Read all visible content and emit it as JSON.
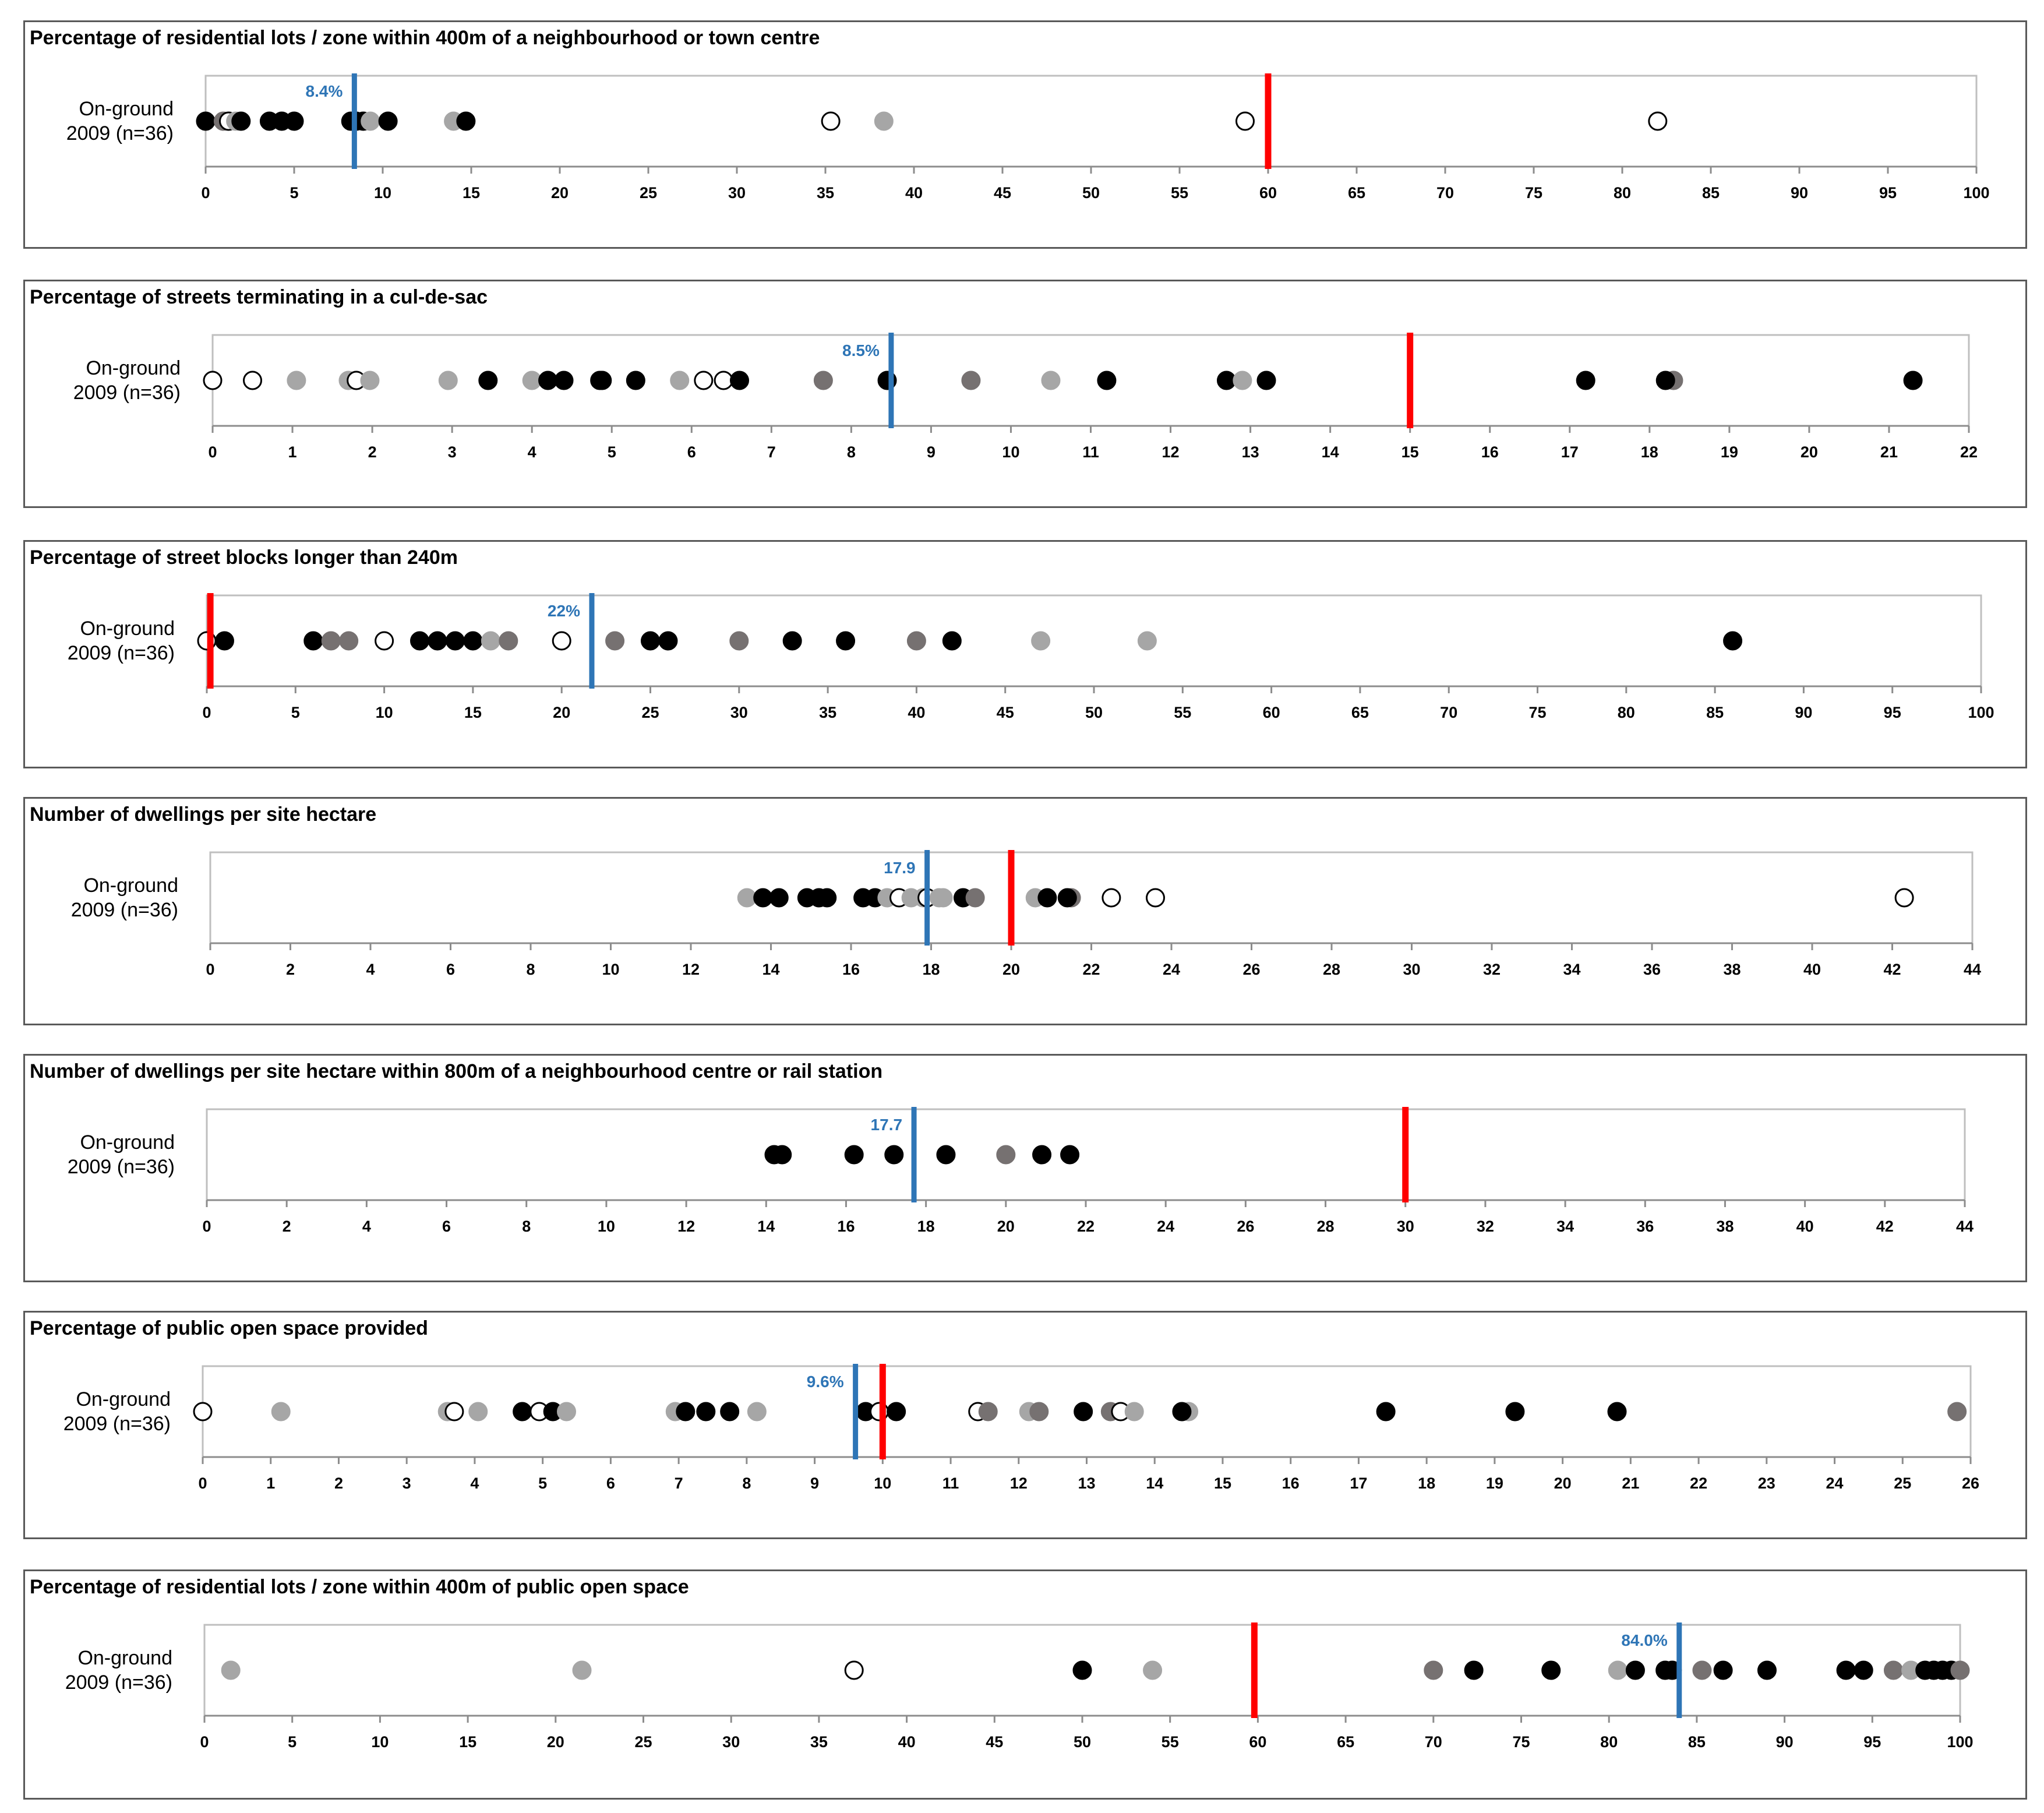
{
  "colors": {
    "black_dot": "#000000",
    "dark_grey_dot": "#767171",
    "light_grey_dot": "#a6a6a6",
    "open_dot_fill": "#ffffff",
    "mean_line": "#2e75b6",
    "target_line": "#ff0000",
    "plot_border": "#bfbfbf"
  },
  "chart_data": [
    {
      "type": "scatter",
      "title": "Percentage of residential lots / zone within 400m of a neighbourhood or town centre",
      "row_label": [
        "On-ground",
        "2009 (n=36)"
      ],
      "xlim": [
        0,
        100
      ],
      "ticks": [
        0,
        5,
        10,
        15,
        20,
        25,
        30,
        35,
        40,
        45,
        50,
        55,
        60,
        65,
        70,
        75,
        80,
        85,
        90,
        95,
        100
      ],
      "mean": {
        "value": 8.4,
        "label": "8.4%"
      },
      "target": {
        "value": 60
      },
      "points": [
        {
          "x": 0,
          "s": "black"
        },
        {
          "x": 1,
          "s": "dark"
        },
        {
          "x": 1.3,
          "s": "open"
        },
        {
          "x": 1.7,
          "s": "light"
        },
        {
          "x": 2,
          "s": "black"
        },
        {
          "x": 3.6,
          "s": "black"
        },
        {
          "x": 4.3,
          "s": "black"
        },
        {
          "x": 5,
          "s": "black"
        },
        {
          "x": 8.2,
          "s": "black"
        },
        {
          "x": 8.5,
          "s": "black"
        },
        {
          "x": 8.9,
          "s": "black"
        },
        {
          "x": 9.3,
          "s": "light"
        },
        {
          "x": 10.3,
          "s": "black"
        },
        {
          "x": 14,
          "s": "light"
        },
        {
          "x": 14.7,
          "s": "black"
        },
        {
          "x": 35.3,
          "s": "open"
        },
        {
          "x": 38.3,
          "s": "light"
        },
        {
          "x": 58.7,
          "s": "open"
        },
        {
          "x": 82,
          "s": "open"
        }
      ]
    },
    {
      "type": "scatter",
      "title": "Percentage of streets terminating in a cul-de-sac",
      "row_label": [
        "On-ground",
        "2009 (n=36)"
      ],
      "xlim": [
        0,
        22
      ],
      "ticks": [
        0,
        1,
        2,
        3,
        4,
        5,
        6,
        7,
        8,
        9,
        10,
        11,
        12,
        13,
        14,
        15,
        16,
        17,
        18,
        19,
        20,
        21,
        22
      ],
      "mean": {
        "value": 8.5,
        "label": "8.5%"
      },
      "target": {
        "value": 15
      },
      "points": [
        {
          "x": 0,
          "s": "open"
        },
        {
          "x": 0.5,
          "s": "open"
        },
        {
          "x": 1.05,
          "s": "light"
        },
        {
          "x": 1.7,
          "s": "light"
        },
        {
          "x": 1.8,
          "s": "open"
        },
        {
          "x": 1.97,
          "s": "light"
        },
        {
          "x": 2.95,
          "s": "light"
        },
        {
          "x": 3.45,
          "s": "black"
        },
        {
          "x": 4,
          "s": "light"
        },
        {
          "x": 4.2,
          "s": "black"
        },
        {
          "x": 4.4,
          "s": "black"
        },
        {
          "x": 4.85,
          "s": "black"
        },
        {
          "x": 4.88,
          "s": "black"
        },
        {
          "x": 5.3,
          "s": "black"
        },
        {
          "x": 5.85,
          "s": "light"
        },
        {
          "x": 6.15,
          "s": "open"
        },
        {
          "x": 6.4,
          "s": "open"
        },
        {
          "x": 6.6,
          "s": "black"
        },
        {
          "x": 7.65,
          "s": "dark"
        },
        {
          "x": 8.45,
          "s": "black"
        },
        {
          "x": 9.5,
          "s": "dark"
        },
        {
          "x": 10.5,
          "s": "light"
        },
        {
          "x": 11.2,
          "s": "black"
        },
        {
          "x": 12.7,
          "s": "black"
        },
        {
          "x": 12.9,
          "s": "light"
        },
        {
          "x": 13.2,
          "s": "black"
        },
        {
          "x": 17.2,
          "s": "black"
        },
        {
          "x": 18.3,
          "s": "dark"
        },
        {
          "x": 18.2,
          "s": "black"
        },
        {
          "x": 21.3,
          "s": "black"
        }
      ]
    },
    {
      "type": "scatter",
      "title": "Percentage of street blocks longer than 240m",
      "row_label": [
        "On-ground",
        "2009 (n=36)"
      ],
      "xlim": [
        0,
        100
      ],
      "ticks": [
        0,
        5,
        10,
        15,
        20,
        25,
        30,
        35,
        40,
        45,
        50,
        55,
        60,
        65,
        70,
        75,
        80,
        85,
        90,
        95,
        100
      ],
      "mean": {
        "value": 21.7,
        "label": "22%"
      },
      "target": {
        "value": 0.2
      },
      "points": [
        {
          "x": 0,
          "s": "open"
        },
        {
          "x": 1,
          "s": "black"
        },
        {
          "x": 6,
          "s": "black"
        },
        {
          "x": 7,
          "s": "dark"
        },
        {
          "x": 8,
          "s": "dark"
        },
        {
          "x": 10,
          "s": "open"
        },
        {
          "x": 12,
          "s": "black"
        },
        {
          "x": 13,
          "s": "black"
        },
        {
          "x": 14,
          "s": "black"
        },
        {
          "x": 15,
          "s": "black"
        },
        {
          "x": 16,
          "s": "light"
        },
        {
          "x": 17,
          "s": "dark"
        },
        {
          "x": 20,
          "s": "open"
        },
        {
          "x": 23,
          "s": "dark"
        },
        {
          "x": 25,
          "s": "black"
        },
        {
          "x": 26,
          "s": "black"
        },
        {
          "x": 30,
          "s": "dark"
        },
        {
          "x": 33,
          "s": "black"
        },
        {
          "x": 36,
          "s": "black"
        },
        {
          "x": 40,
          "s": "dark"
        },
        {
          "x": 42,
          "s": "black"
        },
        {
          "x": 47,
          "s": "light"
        },
        {
          "x": 53,
          "s": "light"
        },
        {
          "x": 86,
          "s": "black"
        }
      ]
    },
    {
      "type": "scatter",
      "title": "Number of dwellings per site hectare",
      "row_label": [
        "On-ground",
        "2009 (n=36)"
      ],
      "xlim": [
        0,
        44
      ],
      "ticks": [
        0,
        2,
        4,
        6,
        8,
        10,
        12,
        14,
        16,
        18,
        20,
        22,
        24,
        26,
        28,
        30,
        32,
        34,
        36,
        38,
        40,
        42,
        44
      ],
      "mean": {
        "value": 17.9,
        "label": "17.9"
      },
      "target": {
        "value": 20
      },
      "points": [
        {
          "x": 13.4,
          "s": "light"
        },
        {
          "x": 13.8,
          "s": "black"
        },
        {
          "x": 14.2,
          "s": "black"
        },
        {
          "x": 14.9,
          "s": "black"
        },
        {
          "x": 15.2,
          "s": "black"
        },
        {
          "x": 15.4,
          "s": "black"
        },
        {
          "x": 16.3,
          "s": "black"
        },
        {
          "x": 16.6,
          "s": "black"
        },
        {
          "x": 16.9,
          "s": "light"
        },
        {
          "x": 17.2,
          "s": "open"
        },
        {
          "x": 17.5,
          "s": "light"
        },
        {
          "x": 17.8,
          "s": "light"
        },
        {
          "x": 17.9,
          "s": "open"
        },
        {
          "x": 18.2,
          "s": "light"
        },
        {
          "x": 18.3,
          "s": "light"
        },
        {
          "x": 18.8,
          "s": "black"
        },
        {
          "x": 19.1,
          "s": "dark"
        },
        {
          "x": 20.6,
          "s": "light"
        },
        {
          "x": 20.9,
          "s": "black"
        },
        {
          "x": 21.5,
          "s": "dark"
        },
        {
          "x": 21.4,
          "s": "black"
        },
        {
          "x": 22.5,
          "s": "open"
        },
        {
          "x": 23.6,
          "s": "open"
        },
        {
          "x": 42.3,
          "s": "open"
        }
      ]
    },
    {
      "type": "scatter",
      "title": "Number of dwellings per site hectare within 800m of a neighbourhood centre or rail station",
      "row_label": [
        "On-ground",
        "2009 (n=36)"
      ],
      "xlim": [
        0,
        44
      ],
      "ticks": [
        0,
        2,
        4,
        6,
        8,
        10,
        12,
        14,
        16,
        18,
        20,
        22,
        24,
        26,
        28,
        30,
        32,
        34,
        36,
        38,
        40,
        42,
        44
      ],
      "mean": {
        "value": 17.7,
        "label": "17.7"
      },
      "target": {
        "value": 30
      },
      "points": [
        {
          "x": 14.2,
          "s": "black"
        },
        {
          "x": 14.4,
          "s": "black"
        },
        {
          "x": 16.2,
          "s": "black"
        },
        {
          "x": 17.2,
          "s": "black"
        },
        {
          "x": 18.5,
          "s": "black"
        },
        {
          "x": 20,
          "s": "dark"
        },
        {
          "x": 20.9,
          "s": "black"
        },
        {
          "x": 21.6,
          "s": "black"
        }
      ]
    },
    {
      "type": "scatter",
      "title": "Percentage of public open space provided",
      "row_label": [
        "On-ground",
        "2009 (n=36)"
      ],
      "xlim": [
        0,
        26
      ],
      "ticks": [
        0,
        1,
        2,
        3,
        4,
        5,
        6,
        7,
        8,
        9,
        10,
        11,
        12,
        13,
        14,
        15,
        16,
        17,
        18,
        19,
        20,
        21,
        22,
        23,
        24,
        25,
        26
      ],
      "mean": {
        "value": 9.6,
        "label": "9.6%"
      },
      "target": {
        "value": 10
      },
      "points": [
        {
          "x": 0,
          "s": "open"
        },
        {
          "x": 1.15,
          "s": "light"
        },
        {
          "x": 3.6,
          "s": "light"
        },
        {
          "x": 3.7,
          "s": "open"
        },
        {
          "x": 4.05,
          "s": "light"
        },
        {
          "x": 4.7,
          "s": "black"
        },
        {
          "x": 4.95,
          "s": "open"
        },
        {
          "x": 5.15,
          "s": "black"
        },
        {
          "x": 5.35,
          "s": "light"
        },
        {
          "x": 6.95,
          "s": "light"
        },
        {
          "x": 7.1,
          "s": "black"
        },
        {
          "x": 7.4,
          "s": "black"
        },
        {
          "x": 7.75,
          "s": "black"
        },
        {
          "x": 8.15,
          "s": "light"
        },
        {
          "x": 9.75,
          "s": "black"
        },
        {
          "x": 9.95,
          "s": "open"
        },
        {
          "x": 10.2,
          "s": "black"
        },
        {
          "x": 11.4,
          "s": "open"
        },
        {
          "x": 11.55,
          "s": "dark"
        },
        {
          "x": 12.15,
          "s": "light"
        },
        {
          "x": 12.3,
          "s": "dark"
        },
        {
          "x": 12.95,
          "s": "black"
        },
        {
          "x": 13.35,
          "s": "dark"
        },
        {
          "x": 13.5,
          "s": "open"
        },
        {
          "x": 13.7,
          "s": "light"
        },
        {
          "x": 14.5,
          "s": "light"
        },
        {
          "x": 14.4,
          "s": "black"
        },
        {
          "x": 17.4,
          "s": "black"
        },
        {
          "x": 19.3,
          "s": "black"
        },
        {
          "x": 20.8,
          "s": "black"
        },
        {
          "x": 25.8,
          "s": "dark"
        }
      ]
    },
    {
      "type": "scatter",
      "title": "Percentage of residential lots / zone within 400m of public open space",
      "row_label": [
        "On-ground",
        "2009 (n=36)"
      ],
      "xlim": [
        0,
        100
      ],
      "ticks": [
        0,
        5,
        10,
        15,
        20,
        25,
        30,
        35,
        40,
        45,
        50,
        55,
        60,
        65,
        70,
        75,
        80,
        85,
        90,
        95,
        100
      ],
      "mean": {
        "value": 84.0,
        "label": "84.0%"
      },
      "target": {
        "value": 59.8
      },
      "points": [
        {
          "x": 1.5,
          "s": "light"
        },
        {
          "x": 21.5,
          "s": "light"
        },
        {
          "x": 37,
          "s": "open"
        },
        {
          "x": 50,
          "s": "black"
        },
        {
          "x": 54,
          "s": "light"
        },
        {
          "x": 70,
          "s": "dark"
        },
        {
          "x": 72.3,
          "s": "black"
        },
        {
          "x": 76.7,
          "s": "black"
        },
        {
          "x": 80.5,
          "s": "light"
        },
        {
          "x": 81.5,
          "s": "black"
        },
        {
          "x": 83.2,
          "s": "black"
        },
        {
          "x": 83.6,
          "s": "black"
        },
        {
          "x": 85.3,
          "s": "dark"
        },
        {
          "x": 86.5,
          "s": "black"
        },
        {
          "x": 89,
          "s": "black"
        },
        {
          "x": 93.5,
          "s": "black"
        },
        {
          "x": 94.5,
          "s": "black"
        },
        {
          "x": 96.2,
          "s": "dark"
        },
        {
          "x": 97.2,
          "s": "light"
        },
        {
          "x": 98,
          "s": "black"
        },
        {
          "x": 98.5,
          "s": "black"
        },
        {
          "x": 99,
          "s": "black"
        },
        {
          "x": 99.5,
          "s": "black"
        },
        {
          "x": 100,
          "s": "dark"
        }
      ]
    }
  ]
}
